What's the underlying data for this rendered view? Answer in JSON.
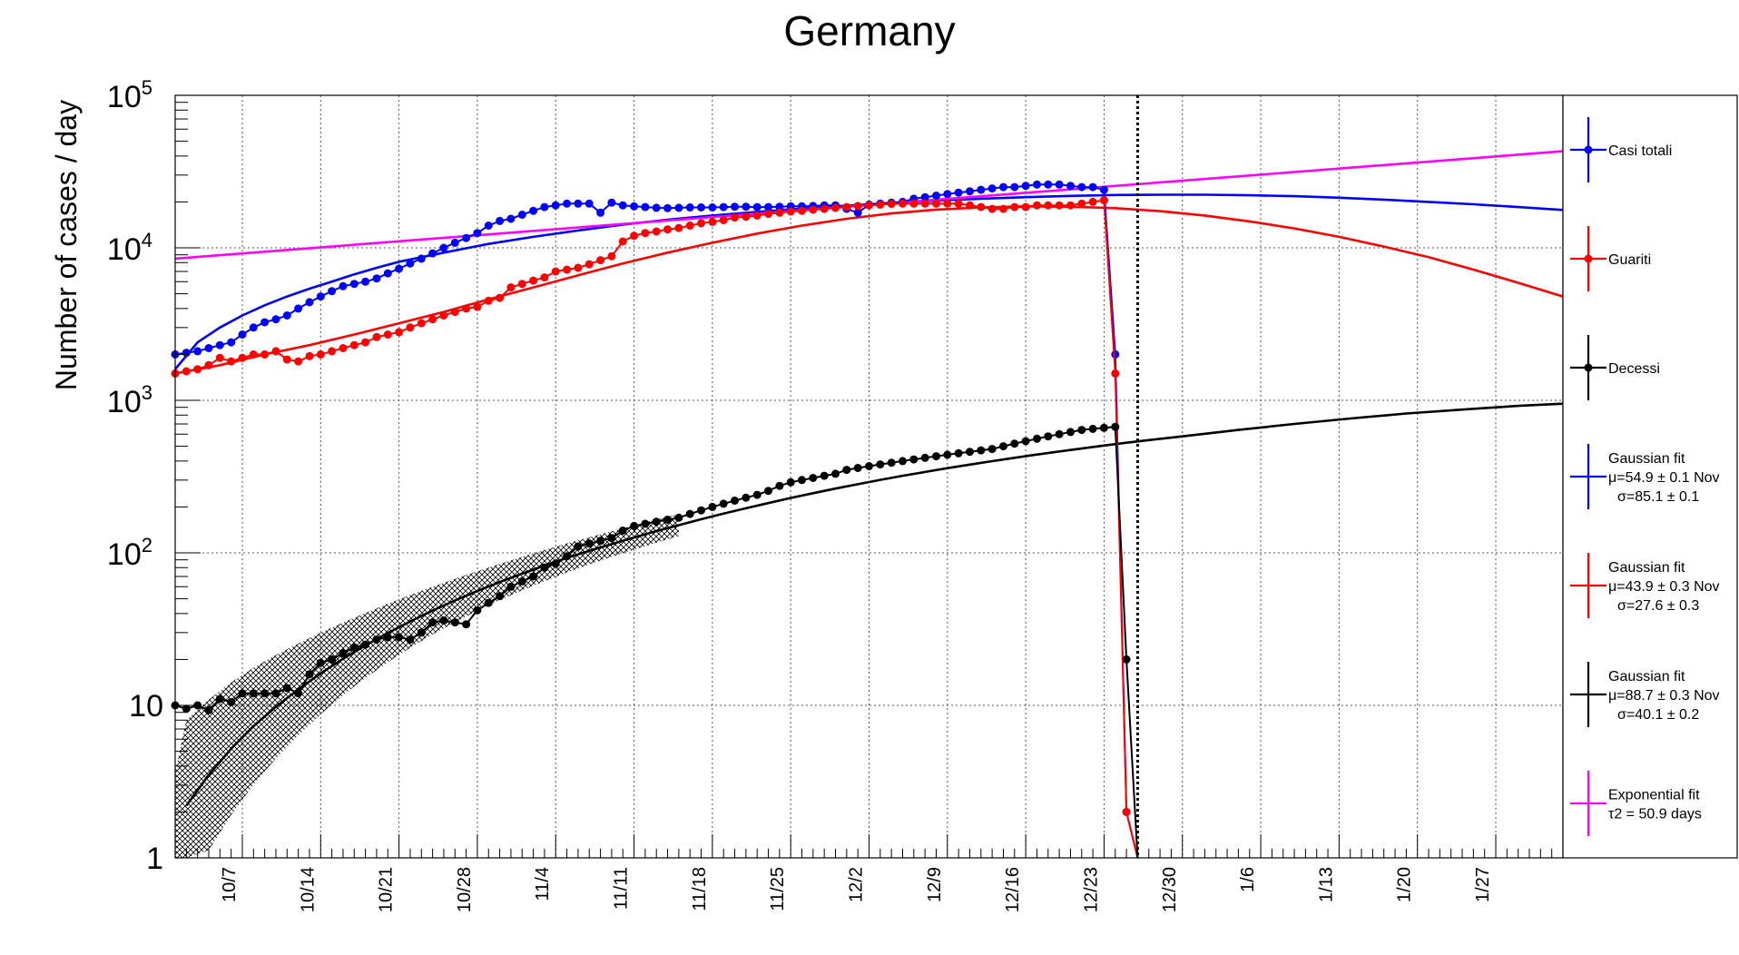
{
  "chart_data": {
    "type": "line",
    "title": "Germany",
    "ylabel": "Number of cases / day",
    "yscale": "log",
    "ylim": [
      1,
      100000
    ],
    "x_range_days": [
      0,
      124
    ],
    "x_tick_labels": [
      {
        "day": 6,
        "label": "10/7"
      },
      {
        "day": 13,
        "label": "10/14"
      },
      {
        "day": 20,
        "label": "10/21"
      },
      {
        "day": 27,
        "label": "10/28"
      },
      {
        "day": 34,
        "label": "11/4"
      },
      {
        "day": 41,
        "label": "11/11"
      },
      {
        "day": 48,
        "label": "11/18"
      },
      {
        "day": 55,
        "label": "11/25"
      },
      {
        "day": 62,
        "label": "12/2"
      },
      {
        "day": 69,
        "label": "12/9"
      },
      {
        "day": 76,
        "label": "12/16"
      },
      {
        "day": 83,
        "label": "12/23"
      },
      {
        "day": 90,
        "label": "12/30"
      },
      {
        "day": 97,
        "label": "1/6"
      },
      {
        "day": 104,
        "label": "1/13"
      },
      {
        "day": 111,
        "label": "1/20"
      },
      {
        "day": 118,
        "label": "1/27"
      }
    ],
    "y_tick_labels": [
      {
        "value": 1,
        "label": "1"
      },
      {
        "value": 10,
        "label": "10"
      },
      {
        "value": 100,
        "label": "10",
        "exp": "2"
      },
      {
        "value": 1000,
        "label": "10",
        "exp": "3"
      },
      {
        "value": 10000,
        "label": "10",
        "exp": "4"
      },
      {
        "value": 100000,
        "label": "10",
        "exp": "5"
      }
    ],
    "vertical_marker_day": 86,
    "grid": true,
    "legend_position": "right",
    "legend": [
      {
        "id": "casi",
        "lines": [
          "Casi totali"
        ],
        "color": "#0000ff"
      },
      {
        "id": "guariti",
        "lines": [
          "Guariti"
        ],
        "color": "#ff0000"
      },
      {
        "id": "decessi",
        "lines": [
          "Decessi"
        ],
        "color": "#000000"
      },
      {
        "id": "fit_casi",
        "lines": [
          "Gaussian fit",
          "μ=54.9 ± 0.1 Nov",
          "σ=85.1 ± 0.1"
        ],
        "color": "#0000ff"
      },
      {
        "id": "fit_guariti",
        "lines": [
          "Gaussian fit",
          "μ=43.9 ± 0.3 Nov",
          "σ=27.6 ± 0.3"
        ],
        "color": "#ff0000"
      },
      {
        "id": "fit_decessi",
        "lines": [
          "Gaussian fit",
          "μ=88.7 ± 0.3 Nov",
          "σ=40.1 ± 0.2"
        ],
        "color": "#000000"
      },
      {
        "id": "fit_exp",
        "lines": [
          "Exponential fit",
          "τ2 = 50.9 days"
        ],
        "color": "#ff00ff"
      }
    ],
    "series": [
      {
        "name": "Casi totali",
        "color": "#0000ff",
        "x": [
          0,
          1,
          2,
          3,
          4,
          5,
          6,
          7,
          8,
          9,
          10,
          11,
          12,
          13,
          14,
          15,
          16,
          17,
          18,
          19,
          20,
          21,
          22,
          23,
          24,
          25,
          26,
          27,
          28,
          29,
          30,
          31,
          32,
          33,
          34,
          35,
          36,
          37,
          38,
          39,
          40,
          41,
          42,
          43,
          44,
          45,
          46,
          47,
          48,
          49,
          50,
          51,
          52,
          53,
          54,
          55,
          56,
          57,
          58,
          59,
          60,
          61,
          62,
          63,
          64,
          65,
          66,
          67,
          68,
          69,
          70,
          71,
          72,
          73,
          74,
          75,
          76,
          77,
          78,
          79,
          80,
          81,
          82,
          83,
          84,
          85,
          86
        ],
        "y": [
          2000,
          2050,
          2100,
          2200,
          2300,
          2400,
          2700,
          3000,
          3250,
          3400,
          3600,
          4000,
          4400,
          4800,
          5200,
          5600,
          5800,
          6000,
          6300,
          6800,
          7300,
          7900,
          8500,
          9200,
          10000,
          10800,
          11600,
          12500,
          14000,
          15000,
          15500,
          16500,
          17500,
          18500,
          19000,
          19500,
          19500,
          19500,
          17000,
          19800,
          19000,
          18700,
          18500,
          18300,
          18200,
          18300,
          18400,
          18400,
          18400,
          18500,
          18600,
          18600,
          18500,
          18500,
          18600,
          18700,
          18700,
          18800,
          19000,
          19000,
          18000,
          17000,
          19200,
          19500,
          19800,
          20000,
          21000,
          21500,
          22000,
          22500,
          23000,
          23500,
          24000,
          24500,
          25000,
          25000,
          25500,
          26000,
          26000,
          26000,
          25500,
          25000,
          25000,
          24000,
          2000,
          2,
          1
        ]
      },
      {
        "name": "Guariti",
        "color": "#ff0000",
        "x": [
          0,
          1,
          2,
          3,
          4,
          5,
          6,
          7,
          8,
          9,
          10,
          11,
          12,
          13,
          14,
          15,
          16,
          17,
          18,
          19,
          20,
          21,
          22,
          23,
          24,
          25,
          26,
          27,
          28,
          29,
          30,
          31,
          32,
          33,
          34,
          35,
          36,
          37,
          38,
          39,
          40,
          41,
          42,
          43,
          44,
          45,
          46,
          47,
          48,
          49,
          50,
          51,
          52,
          53,
          54,
          55,
          56,
          57,
          58,
          59,
          60,
          61,
          62,
          63,
          64,
          65,
          66,
          67,
          68,
          69,
          70,
          71,
          72,
          73,
          74,
          75,
          76,
          77,
          78,
          79,
          80,
          81,
          82,
          83,
          84,
          85,
          86
        ],
        "y": [
          1500,
          1550,
          1600,
          1700,
          1900,
          1800,
          1900,
          2000,
          2000,
          2100,
          1850,
          1800,
          1950,
          2000,
          2100,
          2200,
          2300,
          2400,
          2600,
          2700,
          2800,
          3000,
          3200,
          3400,
          3600,
          3800,
          4000,
          4100,
          4500,
          4700,
          5500,
          5800,
          6100,
          6400,
          7000,
          7200,
          7400,
          7800,
          8300,
          8800,
          11000,
          12000,
          12500,
          12800,
          13200,
          13500,
          14000,
          14500,
          14800,
          15200,
          15800,
          16000,
          16300,
          16700,
          17000,
          17300,
          17500,
          17800,
          18000,
          18300,
          18500,
          18800,
          19000,
          19200,
          19400,
          19500,
          19500,
          19500,
          19500,
          19500,
          19500,
          19000,
          18500,
          18000,
          18000,
          18500,
          18500,
          19000,
          19000,
          19000,
          19000,
          19500,
          20000,
          20500,
          1500,
          2,
          1
        ]
      },
      {
        "name": "Decessi",
        "color": "#000000",
        "x": [
          0,
          1,
          2,
          3,
          4,
          5,
          6,
          7,
          8,
          9,
          10,
          11,
          12,
          13,
          14,
          15,
          16,
          17,
          18,
          19,
          20,
          21,
          22,
          23,
          24,
          25,
          26,
          27,
          28,
          29,
          30,
          31,
          32,
          33,
          34,
          35,
          36,
          37,
          38,
          39,
          40,
          41,
          42,
          43,
          44,
          45,
          46,
          47,
          48,
          49,
          50,
          51,
          52,
          53,
          54,
          55,
          56,
          57,
          58,
          59,
          60,
          61,
          62,
          63,
          64,
          65,
          66,
          67,
          68,
          69,
          70,
          71,
          72,
          73,
          74,
          75,
          76,
          77,
          78,
          79,
          80,
          81,
          82,
          83,
          84,
          85,
          86
        ],
        "y": [
          10,
          9.5,
          10,
          9.3,
          11,
          10.5,
          12,
          12,
          12,
          12,
          13,
          12,
          16,
          19,
          20,
          22,
          24,
          25,
          27,
          28,
          28,
          27,
          30,
          35,
          36,
          35,
          34,
          42,
          47,
          52,
          60,
          65,
          70,
          80,
          85,
          95,
          110,
          115,
          120,
          125,
          140,
          150,
          155,
          160,
          165,
          170,
          180,
          190,
          200,
          210,
          220,
          230,
          240,
          255,
          275,
          290,
          300,
          310,
          320,
          330,
          350,
          360,
          370,
          380,
          390,
          400,
          410,
          420,
          430,
          440,
          450,
          460,
          470,
          480,
          500,
          520,
          540,
          560,
          580,
          600,
          620,
          640,
          650,
          660,
          670,
          20,
          1
        ]
      },
      {
        "name": "Gaussian fit",
        "color": "#0000ff",
        "x": [
          0,
          2,
          4,
          6,
          8,
          10,
          12,
          14,
          16,
          18,
          20,
          24,
          28,
          32,
          36,
          40,
          44,
          48,
          52,
          56,
          60,
          64,
          68,
          72,
          76,
          80,
          84,
          88,
          92,
          96,
          100,
          104,
          108,
          112,
          116,
          120,
          124
        ],
        "y": [
          1600,
          2400,
          3000,
          3600,
          4200,
          4800,
          5400,
          6000,
          6700,
          7400,
          8100,
          9300,
          10600,
          11800,
          13000,
          14200,
          15300,
          16300,
          17200,
          18100,
          18900,
          19700,
          20400,
          21000,
          21500,
          21900,
          22200,
          22300,
          22300,
          22100,
          21800,
          21300,
          20700,
          20000,
          19300,
          18500,
          17700
        ]
      },
      {
        "name": "Gaussian fit",
        "color": "#ff0000",
        "x": [
          0,
          4,
          8,
          12,
          16,
          20,
          24,
          28,
          32,
          36,
          40,
          44,
          48,
          52,
          56,
          60,
          64,
          68,
          72,
          76,
          80,
          84,
          88,
          92,
          96,
          100,
          104,
          108,
          112,
          116,
          120,
          124
        ],
        "y": [
          1500,
          1700,
          2000,
          2300,
          2700,
          3200,
          3800,
          4600,
          5500,
          6600,
          7900,
          9300,
          10800,
          12400,
          14000,
          15500,
          16800,
          17800,
          18400,
          18700,
          18600,
          18200,
          17400,
          16300,
          14900,
          13400,
          11800,
          10200,
          8700,
          7200,
          5900,
          4800
        ]
      },
      {
        "name": "Gaussian fit",
        "color": "#000000",
        "x": [
          1,
          3,
          5,
          7,
          9,
          11,
          13,
          15,
          17,
          19,
          21,
          23,
          25,
          27,
          29,
          31,
          33,
          35,
          37,
          39,
          41,
          43,
          45,
          47,
          49,
          51,
          53,
          55,
          57,
          59,
          61,
          63,
          65,
          67,
          69,
          71,
          73,
          75,
          77,
          79,
          81,
          83,
          85,
          87,
          90,
          95,
          100,
          105,
          110,
          115,
          120,
          124
        ],
        "y": [
          2.2,
          3.5,
          5.2,
          7.3,
          9.8,
          12.7,
          16.2,
          20.2,
          24.7,
          29.8,
          35.5,
          41.8,
          48.7,
          56.2,
          64.3,
          73.1,
          82.5,
          92.6,
          103,
          114,
          126,
          139,
          152,
          166,
          181,
          196,
          212,
          229,
          246,
          264,
          282,
          301,
          320,
          339,
          359,
          379,
          399,
          420,
          441,
          462,
          483,
          505,
          527,
          549,
          580,
          640,
          700,
          760,
          820,
          870,
          920,
          950
        ]
      },
      {
        "name": "Exponential fit",
        "color": "#ff00ff",
        "x": [
          0,
          124
        ],
        "y": [
          8500,
          43000
        ]
      }
    ]
  }
}
